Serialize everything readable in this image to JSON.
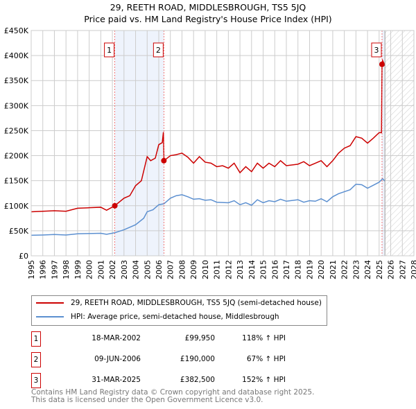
{
  "title": "29, REETH ROAD, MIDDLESBROUGH, TS5 5JQ",
  "subtitle": "Price paid vs. HM Land Registry's House Price Index (HPI)",
  "colors": {
    "property": "#cc0000",
    "hpi": "#5b8fd0",
    "shade": "#eef3fc"
  },
  "chart_data": {
    "type": "line",
    "xlim": [
      1995,
      2028
    ],
    "ylim": [
      0,
      450000
    ],
    "yticks": [
      "£0",
      "£50K",
      "£100K",
      "£150K",
      "£200K",
      "£250K",
      "£300K",
      "£350K",
      "£400K",
      "£450K"
    ],
    "xticks": [
      "1995",
      "1996",
      "1997",
      "1998",
      "1999",
      "2000",
      "2001",
      "2002",
      "2003",
      "2004",
      "2005",
      "2006",
      "2007",
      "2008",
      "2009",
      "2010",
      "2011",
      "2012",
      "2013",
      "2014",
      "2015",
      "2016",
      "2017",
      "2018",
      "2019",
      "2020",
      "2021",
      "2022",
      "2023",
      "2024",
      "2025",
      "2026",
      "2027",
      "2028"
    ],
    "forecast_from": 2025.5,
    "series": [
      {
        "name": "29, REETH ROAD, MIDDLESBROUGH, TS5 5JQ (semi-detached house)",
        "x": [
          1995,
          1996,
          1997,
          1998,
          1999,
          2000,
          2001,
          2001.5,
          2002.2,
          2003,
          2003.5,
          2004,
          2004.5,
          2005,
          2005.3,
          2005.7,
          2006,
          2006.3,
          2006.4,
          2006.45,
          2007,
          2007.5,
          2008,
          2008.5,
          2009,
          2009.5,
          2010,
          2010.5,
          2011,
          2011.5,
          2012,
          2012.5,
          2013,
          2013.5,
          2014,
          2014.5,
          2015,
          2015.5,
          2016,
          2016.5,
          2017,
          2018,
          2018.5,
          2019,
          2019.5,
          2020,
          2020.5,
          2021,
          2021.5,
          2022,
          2022.5,
          2023,
          2023.5,
          2024,
          2024.5,
          2025,
          2025.2,
          2025.25,
          2025.3,
          2025.5
        ],
        "values": [
          88000,
          89000,
          90000,
          89000,
          95000,
          96000,
          97000,
          91000,
          99950,
          115000,
          120000,
          140000,
          150000,
          198000,
          190000,
          195000,
          222000,
          226000,
          247000,
          190000,
          200000,
          202000,
          205000,
          197000,
          185000,
          198000,
          187000,
          185000,
          178000,
          180000,
          175000,
          185000,
          166000,
          178000,
          168000,
          185000,
          175000,
          185000,
          178000,
          190000,
          180000,
          183000,
          188000,
          180000,
          185000,
          190000,
          178000,
          190000,
          205000,
          215000,
          220000,
          238000,
          235000,
          225000,
          235000,
          246000,
          246000,
          382500,
          390000,
          380000
        ]
      },
      {
        "name": "HPI: Average price, semi-detached house, Middlesbrough",
        "x": [
          1995,
          1996,
          1997,
          1998,
          1999,
          2000,
          2001,
          2001.5,
          2002.2,
          2003,
          2004,
          2004.7,
          2005,
          2005.5,
          2006,
          2006.45,
          2007,
          2007.5,
          2008,
          2008.5,
          2009,
          2009.5,
          2010,
          2010.5,
          2011,
          2012,
          2012.5,
          2013,
          2013.5,
          2014,
          2014.5,
          2015,
          2015.5,
          2016,
          2016.5,
          2017,
          2018,
          2018.5,
          2019,
          2019.5,
          2020,
          2020.5,
          2021,
          2021.5,
          2022,
          2022.5,
          2023,
          2023.5,
          2024,
          2024.5,
          2025,
          2025.3,
          2025.5
        ],
        "values": [
          41000,
          41500,
          42500,
          41500,
          44000,
          44500,
          45000,
          43000,
          46000,
          52000,
          62000,
          75000,
          88000,
          92000,
          102000,
          104000,
          115000,
          120000,
          122000,
          118000,
          113000,
          114000,
          111000,
          112000,
          107000,
          106000,
          110000,
          102000,
          106000,
          101000,
          112000,
          106000,
          110000,
          108000,
          113000,
          109000,
          112000,
          107000,
          110000,
          109000,
          114000,
          108000,
          118000,
          124000,
          128000,
          132000,
          143000,
          142000,
          135000,
          141000,
          147000,
          154000,
          149000
        ]
      }
    ],
    "sales": [
      {
        "label": "1",
        "x": 2002.21,
        "value": 99950
      },
      {
        "label": "2",
        "x": 2006.44,
        "value": 190000
      },
      {
        "label": "3",
        "x": 2025.25,
        "value": 382500
      }
    ]
  },
  "legend": {
    "property": "29, REETH ROAD, MIDDLESBROUGH, TS5 5JQ (semi-detached house)",
    "hpi": "HPI: Average price, semi-detached house, Middlesbrough"
  },
  "transactions": [
    {
      "num": "1",
      "date": "18-MAR-2002",
      "price": "£99,950",
      "hpi": "118% ↑ HPI"
    },
    {
      "num": "2",
      "date": "09-JUN-2006",
      "price": "£190,000",
      "hpi": "67% ↑ HPI"
    },
    {
      "num": "3",
      "date": "31-MAR-2025",
      "price": "£382,500",
      "hpi": "152% ↑ HPI"
    }
  ],
  "footer": {
    "line1": "Contains HM Land Registry data © Crown copyright and database right 2025.",
    "line2": "This data is licensed under the Open Government Licence v3.0."
  }
}
